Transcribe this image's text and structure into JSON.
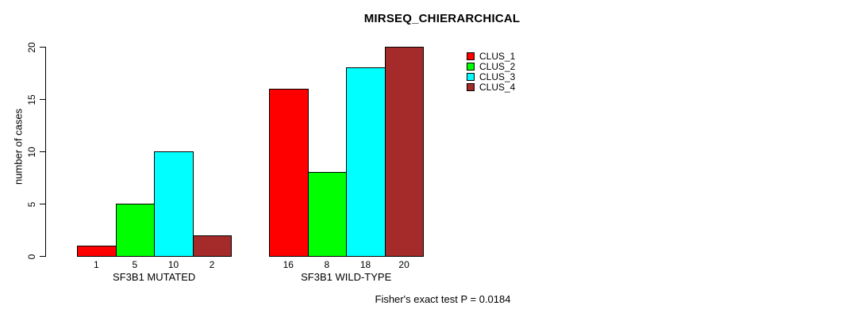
{
  "title": "MIRSEQ_CHIERARCHICAL",
  "footnote": "Fisher's exact test P = 0.0184",
  "chart_data": {
    "type": "bar",
    "title": "MIRSEQ_CHIERARCHICAL",
    "categories": [
      "SF3B1 MUTATED",
      "SF3B1 WILD-TYPE"
    ],
    "series": [
      {
        "name": "CLUS_1",
        "color": "#FF0000",
        "values": [
          1,
          16
        ]
      },
      {
        "name": "CLUS_2",
        "color": "#00FF00",
        "values": [
          5,
          8
        ]
      },
      {
        "name": "CLUS_3",
        "color": "#00FFFF",
        "values": [
          10,
          18
        ]
      },
      {
        "name": "CLUS_4",
        "color": "#A52A2A",
        "values": [
          2,
          20
        ]
      }
    ],
    "bar_value_labels": [
      [
        "1",
        "5",
        "10",
        "2"
      ],
      [
        "16",
        "8",
        "18",
        "20"
      ]
    ],
    "xlabel": "",
    "ylabel": "number of cases",
    "yticks": [
      "0",
      "5",
      "10",
      "15",
      "20"
    ],
    "ylim": [
      0,
      20
    ],
    "grid": false,
    "legend_position": "top-right",
    "annotation": "Fisher's exact test P = 0.0184"
  }
}
